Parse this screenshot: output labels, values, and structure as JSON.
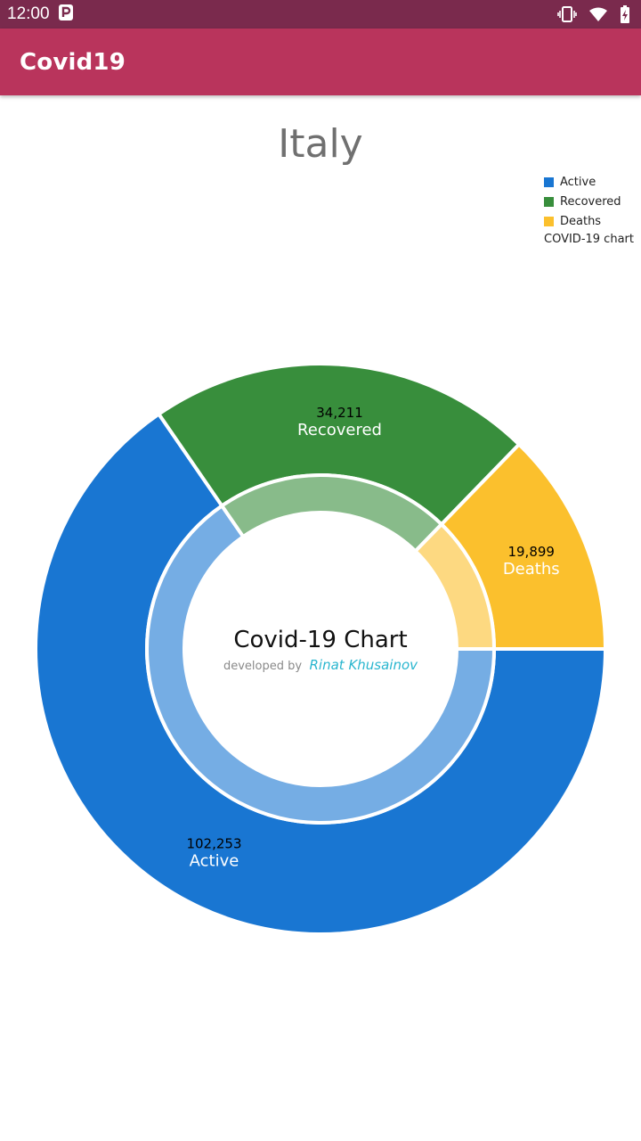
{
  "status_bar": {
    "time": "12:00",
    "icons": [
      "parking-icon",
      "vibrate-icon",
      "wifi-icon",
      "battery-icon"
    ]
  },
  "app_bar": {
    "title": "Covid19"
  },
  "country": "Italy",
  "legend": {
    "items": [
      {
        "label": "Active",
        "color": "#1976d2"
      },
      {
        "label": "Recovered",
        "color": "#388e3c"
      },
      {
        "label": "Deaths",
        "color": "#fbc02d"
      }
    ],
    "description": "COVID-19 chart"
  },
  "colors": {
    "status_bar": "#7a2a4d",
    "app_bar": "#b9345c"
  },
  "chart_data": {
    "type": "pie",
    "categories": [
      "Active",
      "Recovered",
      "Deaths"
    ],
    "values": [
      102253,
      34211,
      19899
    ],
    "value_labels": [
      "102,253",
      "34,211",
      "19,899"
    ],
    "colors": [
      "#1976d2",
      "#388e3c",
      "#fbc02d"
    ],
    "center_title": "Covid-19 Chart",
    "center_subtitle": "developed by",
    "center_author": "Rinat Khusainov",
    "legend_position": "top-right"
  }
}
